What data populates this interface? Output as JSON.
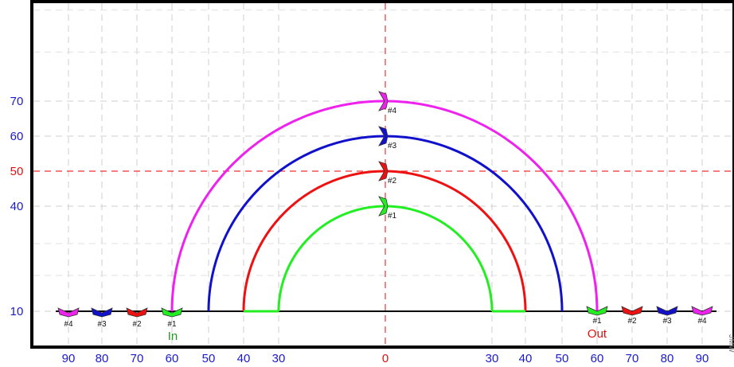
{
  "chart_data": {
    "type": "diagram",
    "title": "",
    "x_ticks_left": [
      "90",
      "80",
      "70",
      "60",
      "50",
      "40",
      "30"
    ],
    "x_tick_center": "0",
    "x_ticks_right": [
      "30",
      "40",
      "50",
      "60",
      "70",
      "80",
      "90"
    ],
    "y_ticks": [
      {
        "label": "70",
        "value": 70,
        "color": "#1a1acc"
      },
      {
        "label": "60",
        "value": 60,
        "color": "#1a1acc"
      },
      {
        "label": "50",
        "value": 50,
        "color": "#dd1111"
      },
      {
        "label": "40",
        "value": 40,
        "color": "#1a1acc"
      },
      {
        "label": "10",
        "value": 10,
        "color": "#1a1acc"
      }
    ],
    "reference_lines": {
      "x": 0,
      "y": 50,
      "color": "#ee3333"
    },
    "arcs": [
      {
        "id": "#1",
        "radius": 30,
        "top": 40,
        "color": "#22ee22"
      },
      {
        "id": "#2",
        "radius": 40,
        "top": 50,
        "color": "#ee1111"
      },
      {
        "id": "#3",
        "radius": 50,
        "top": 60,
        "color": "#1111cc"
      },
      {
        "id": "#4",
        "radius": 60,
        "top": 70,
        "color": "#ee22ee"
      }
    ],
    "in_markers": [
      {
        "label": "#4",
        "x": -90,
        "color": "#ee22ee"
      },
      {
        "label": "#3",
        "x": -80,
        "color": "#1111cc"
      },
      {
        "label": "#2",
        "x": -70,
        "color": "#ee1111"
      },
      {
        "label": "#1",
        "x": -60,
        "color": "#22ee22"
      }
    ],
    "out_markers": [
      {
        "label": "#1",
        "x": 60,
        "color": "#22ee22"
      },
      {
        "label": "#2",
        "x": 70,
        "color": "#ee1111"
      },
      {
        "label": "#3",
        "x": 80,
        "color": "#1111cc"
      },
      {
        "label": "#4",
        "x": 90,
        "color": "#ee22ee"
      }
    ],
    "in_label": {
      "text": "In",
      "color": "#229922"
    },
    "out_label": {
      "text": "Out",
      "color": "#dd1111"
    },
    "tick_color": "#1a1acc",
    "center_tick_color": "#dd1111",
    "grid": true
  },
  "watermark": "JMW"
}
